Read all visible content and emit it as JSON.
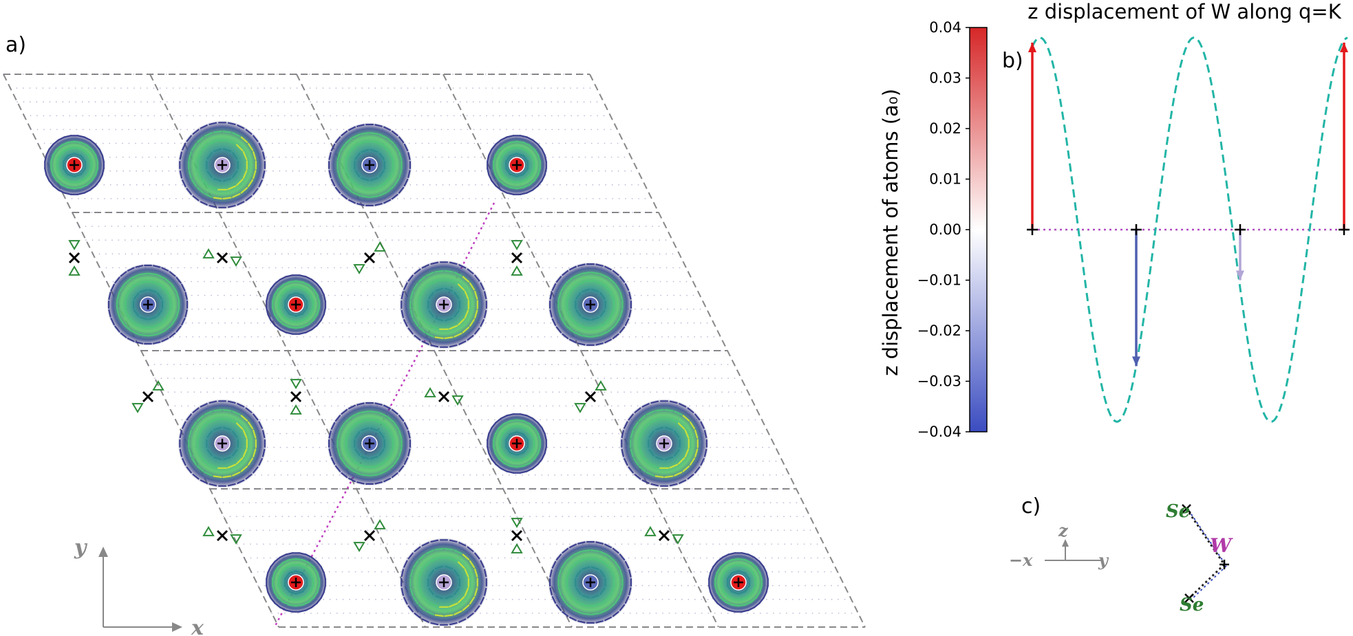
{
  "panel_labels": {
    "a": "a)",
    "b": "b)",
    "c": "c)"
  },
  "panel_a": {
    "axis_labels": {
      "x": "x",
      "y": "y"
    },
    "legend_symbols": {
      "cross": "×",
      "plus": "+"
    },
    "colors": {
      "red_site": "#e31a1c",
      "blue_site": "#5b6bb8",
      "lilac_site": "#b8a4d6",
      "triangle": "#2e8b3a",
      "cell_boundary": "#888888",
      "domain_wall": "#c040c0"
    }
  },
  "colorbar": {
    "title": "z displacement of atoms (a₀)",
    "ticks": [
      "0.04",
      "0.03",
      "0.02",
      "0.01",
      "0.00",
      "−0.01",
      "−0.02",
      "−0.03",
      "−0.04"
    ],
    "colors": {
      "top": "#d62728",
      "mid": "#ffffff",
      "bottom": "#3b4cc0"
    }
  },
  "chart_data": {
    "type": "line",
    "title": "z displacement of W along q=K",
    "xlabel": "",
    "ylabel": "z displacement of atoms (a₀)",
    "ylim": [
      -0.04,
      0.04
    ],
    "series": [
      {
        "name": "wave",
        "style": "dashed",
        "color": "#22b5a6",
        "amplitude": 0.038,
        "periods": 2.67
      }
    ],
    "arrows": [
      {
        "site": 0,
        "value": 0.037,
        "color": "#e31a1c"
      },
      {
        "site": 1,
        "value": -0.027,
        "color": "#4f5fb0"
      },
      {
        "site": 2,
        "value": -0.01,
        "color": "#b2a6d6"
      },
      {
        "site": 3,
        "value": 0.037,
        "color": "#e31a1c"
      }
    ]
  },
  "panel_c": {
    "axes": {
      "z": "z",
      "neg_x": "−x",
      "y": "y"
    },
    "atoms": {
      "top": "Se",
      "middle": "W",
      "bottom": "Se"
    },
    "colors": {
      "Se": "#2e7d32",
      "W": "#b03aa8"
    }
  }
}
